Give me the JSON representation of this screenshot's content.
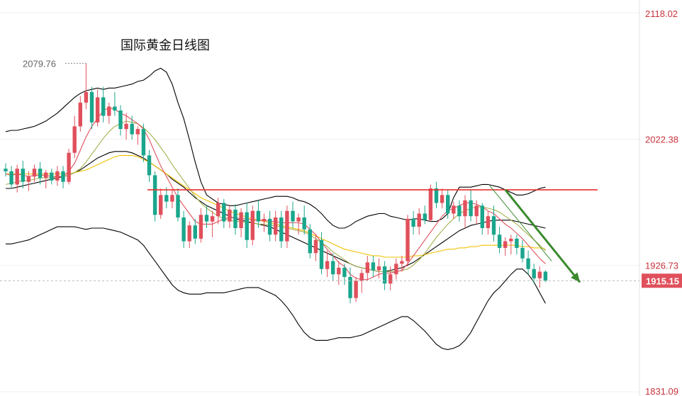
{
  "chart_data": {
    "type": "candlestick",
    "title": "国际黄金日线图",
    "ylim": [
      1831.09,
      2118.02
    ],
    "y_ticks": [
      {
        "value": 2118.02,
        "label": "2118.02"
      },
      {
        "value": 2022.38,
        "label": "2022.38"
      },
      {
        "value": 1926.73,
        "label": "1926.73"
      },
      {
        "value": 1831.09,
        "label": "1831.09"
      }
    ],
    "last_price": {
      "value": 1915.15,
      "label": "1915.15"
    },
    "high_marker": {
      "value": 2079.76,
      "label": "2079.76",
      "index": 14
    },
    "resistance_level": 1984.0,
    "colors": {
      "up": "#e0505c",
      "down": "#1aa68c",
      "ma_fast": "#e0505c",
      "ma_mid": "#a4b04c",
      "ma_slow": "#f2c200",
      "bollinger": "#000000",
      "resistance": "#e83030",
      "arrow": "#3a8a2e",
      "axis_text": "#c8323c",
      "badge": "#e0505c"
    },
    "candles": [
      [
        2000,
        2004,
        1994,
        1998
      ],
      [
        1998,
        2002,
        1985,
        1988
      ],
      [
        1988,
        2003,
        1982,
        2000
      ],
      [
        2000,
        2006,
        1985,
        1990
      ],
      [
        1990,
        1998,
        1983,
        1994
      ],
      [
        1994,
        2003,
        1990,
        2000
      ],
      [
        2000,
        2005,
        1988,
        1993
      ],
      [
        1993,
        1999,
        1985,
        1997
      ],
      [
        1997,
        2000,
        1988,
        1991
      ],
      [
        1991,
        2002,
        1987,
        1998
      ],
      [
        1998,
        2002,
        1985,
        1990
      ],
      [
        1990,
        2015,
        1988,
        2012
      ],
      [
        2012,
        2040,
        2008,
        2032
      ],
      [
        2032,
        2055,
        2028,
        2050
      ],
      [
        2050,
        2079.76,
        2045,
        2058
      ],
      [
        2058,
        2062,
        2030,
        2035
      ],
      [
        2035,
        2060,
        2032,
        2054
      ],
      [
        2054,
        2062,
        2035,
        2040
      ],
      [
        2040,
        2050,
        2034,
        2047
      ],
      [
        2047,
        2058,
        2040,
        2044
      ],
      [
        2044,
        2048,
        2025,
        2030
      ],
      [
        2030,
        2042,
        2022,
        2034
      ],
      [
        2034,
        2040,
        2022,
        2026
      ],
      [
        2026,
        2032,
        2018,
        2030
      ],
      [
        2030,
        2034,
        2005,
        2010
      ],
      [
        2010,
        2014,
        1990,
        1995
      ],
      [
        1995,
        1998,
        1960,
        1965
      ],
      [
        1965,
        1985,
        1962,
        1980
      ],
      [
        1980,
        1986,
        1970,
        1975
      ],
      [
        1975,
        1984,
        1970,
        1980
      ],
      [
        1980,
        1985,
        1960,
        1963
      ],
      [
        1963,
        1968,
        1940,
        1945
      ],
      [
        1945,
        1960,
        1940,
        1957
      ],
      [
        1957,
        1962,
        1943,
        1947
      ],
      [
        1947,
        1970,
        1944,
        1965
      ],
      [
        1965,
        1972,
        1955,
        1960
      ],
      [
        1960,
        1968,
        1948,
        1964
      ],
      [
        1964,
        1978,
        1958,
        1974
      ],
      [
        1974,
        1977,
        1955,
        1960
      ],
      [
        1960,
        1972,
        1955,
        1969
      ],
      [
        1969,
        1973,
        1950,
        1955
      ],
      [
        1955,
        1970,
        1948,
        1967
      ],
      [
        1967,
        1974,
        1940,
        1946
      ],
      [
        1946,
        1972,
        1942,
        1968
      ],
      [
        1968,
        1976,
        1955,
        1960
      ],
      [
        1960,
        1966,
        1952,
        1962
      ],
      [
        1962,
        1968,
        1945,
        1950
      ],
      [
        1950,
        1968,
        1945,
        1963
      ],
      [
        1963,
        1968,
        1940,
        1945
      ],
      [
        1945,
        1972,
        1940,
        1968
      ],
      [
        1968,
        1975,
        1955,
        1960
      ],
      [
        1960,
        1966,
        1950,
        1963
      ],
      [
        1963,
        1972,
        1950,
        1954
      ],
      [
        1954,
        1958,
        1932,
        1936
      ],
      [
        1936,
        1950,
        1930,
        1946
      ],
      [
        1946,
        1952,
        1920,
        1924
      ],
      [
        1924,
        1938,
        1918,
        1930
      ],
      [
        1930,
        1936,
        1915,
        1920
      ],
      [
        1920,
        1930,
        1912,
        1925
      ],
      [
        1925,
        1928,
        1912,
        1918
      ],
      [
        1918,
        1925,
        1898,
        1902
      ],
      [
        1902,
        1918,
        1899,
        1915
      ],
      [
        1915,
        1924,
        1906,
        1921
      ],
      [
        1921,
        1934,
        1915,
        1929
      ],
      [
        1929,
        1934,
        1918,
        1923
      ],
      [
        1923,
        1932,
        1917,
        1926
      ],
      [
        1926,
        1930,
        1908,
        1913
      ],
      [
        1913,
        1926,
        1908,
        1920
      ],
      [
        1920,
        1932,
        1916,
        1928
      ],
      [
        1928,
        1934,
        1922,
        1930
      ],
      [
        1930,
        1965,
        1926,
        1962
      ],
      [
        1962,
        1968,
        1950,
        1956
      ],
      [
        1956,
        1970,
        1950,
        1966
      ],
      [
        1966,
        1972,
        1958,
        1961
      ],
      [
        1961,
        1988,
        1960,
        1985
      ],
      [
        1985,
        1990,
        1970,
        1974
      ],
      [
        1974,
        1985,
        1970,
        1980
      ],
      [
        1980,
        1984,
        1962,
        1966
      ],
      [
        1966,
        1975,
        1962,
        1972
      ],
      [
        1972,
        1976,
        1960,
        1964
      ],
      [
        1964,
        1980,
        1955,
        1976
      ],
      [
        1976,
        1984,
        1960,
        1964
      ],
      [
        1964,
        1976,
        1958,
        1972
      ],
      [
        1972,
        1974,
        1950,
        1955
      ],
      [
        1955,
        1968,
        1950,
        1964
      ],
      [
        1964,
        1972,
        1945,
        1950
      ],
      [
        1950,
        1956,
        1936,
        1940
      ],
      [
        1940,
        1948,
        1934,
        1945
      ],
      [
        1945,
        1950,
        1935,
        1947
      ],
      [
        1947,
        1950,
        1935,
        1940
      ],
      [
        1940,
        1946,
        1929,
        1932
      ],
      [
        1932,
        1938,
        1920,
        1924
      ],
      [
        1924,
        1928,
        1913,
        1917
      ],
      [
        1917,
        1926,
        1910,
        1922
      ],
      [
        1922,
        1923,
        1914,
        1915.15
      ]
    ],
    "ma_fast": [
      1996,
      1995,
      1996,
      1995,
      1994,
      1995,
      1995,
      1995,
      1994,
      1994,
      1994,
      1998,
      2004,
      2014,
      2024,
      2032,
      2038,
      2044,
      2046,
      2045,
      2042,
      2040,
      2037,
      2034,
      2030,
      2022,
      2012,
      2002,
      1994,
      1986,
      1978,
      1972,
      1966,
      1960,
      1958,
      1958,
      1958,
      1960,
      1962,
      1963,
      1963,
      1962,
      1962,
      1961,
      1961,
      1961,
      1960,
      1960,
      1959,
      1959,
      1959,
      1959,
      1958,
      1954,
      1950,
      1944,
      1939,
      1934,
      1929,
      1926,
      1920,
      1917,
      1916,
      1916,
      1918,
      1920,
      1921,
      1921,
      1922,
      1923,
      1928,
      1934,
      1940,
      1946,
      1952,
      1958,
      1964,
      1968,
      1970,
      1972,
      1974,
      1974,
      1973,
      1971,
      1968,
      1966,
      1962,
      1958,
      1955,
      1951,
      1947,
      1942,
      1937,
      1932,
      1928
    ],
    "ma_mid": [
      1988,
      1989,
      1990,
      1991,
      1991,
      1992,
      1993,
      1993,
      1993,
      1994,
      1994,
      1995,
      1997,
      2000,
      2005,
      2011,
      2017,
      2023,
      2028,
      2032,
      2034,
      2036,
      2035,
      2034,
      2031,
      2027,
      2022,
      2016,
      2010,
      2003,
      1997,
      1991,
      1985,
      1979,
      1974,
      1970,
      1967,
      1964,
      1962,
      1961,
      1960,
      1960,
      1959,
      1959,
      1958,
      1958,
      1957,
      1957,
      1956,
      1955,
      1954,
      1953,
      1952,
      1950,
      1947,
      1944,
      1941,
      1937,
      1934,
      1931,
      1928,
      1926,
      1925,
      1924,
      1923,
      1922,
      1922,
      1922,
      1922,
      1923,
      1924,
      1927,
      1931,
      1936,
      1942,
      1948,
      1953,
      1958,
      1962,
      1966,
      1968,
      1970,
      1971,
      1971,
      1970,
      1969,
      1967,
      1964,
      1961,
      1958,
      1954,
      1950,
      1946,
      1942,
      1938
    ],
    "ma_slow": [
      1996,
      1996,
      1996,
      1996,
      1996,
      1996,
      1996,
      1996,
      1996,
      1996,
      1996,
      1996,
      1997,
      1998,
      1999,
      2001,
      2003,
      2005,
      2007,
      2009,
      2010,
      2010,
      2010,
      2009,
      2007,
      2005,
      2002,
      1999,
      1996,
      1993,
      1990,
      1987,
      1984,
      1981,
      1978,
      1976,
      1974,
      1972,
      1970,
      1968,
      1966,
      1965,
      1963,
      1962,
      1961,
      1960,
      1959,
      1958,
      1957,
      1956,
      1955,
      1954,
      1953,
      1951,
      1949,
      1947,
      1945,
      1943,
      1941,
      1939,
      1938,
      1937,
      1936,
      1935,
      1934,
      1934,
      1933,
      1933,
      1933,
      1933,
      1933,
      1934,
      1934,
      1935,
      1936,
      1937,
      1938,
      1939,
      1939,
      1940,
      1940,
      1941,
      1941,
      1942,
      1942,
      1942,
      1942,
      1942,
      1942,
      1942,
      1941,
      1941,
      1940,
      1940,
      1939
    ],
    "bollinger_mid": [
      1985,
      1985,
      1986,
      1987,
      1988,
      1989,
      1990,
      1991,
      1992,
      1993,
      1994,
      1995,
      1997,
      1999,
      2002,
      2005,
      2008,
      2010,
      2012,
      2013,
      2013,
      2013,
      2012,
      2010,
      2008,
      2005,
      2002,
      1999,
      1996,
      1992,
      1989,
      1986,
      1982,
      1978,
      1975,
      1972,
      1970,
      1968,
      1966,
      1964,
      1962,
      1961,
      1960,
      1959,
      1958,
      1957,
      1956,
      1954,
      1952,
      1950,
      1948,
      1946,
      1944,
      1942,
      1940,
      1938,
      1936,
      1934,
      1932,
      1930,
      1928,
      1926,
      1925,
      1924,
      1923,
      1922,
      1922,
      1923,
      1924,
      1925,
      1927,
      1929,
      1932,
      1935,
      1938,
      1941,
      1944,
      1947,
      1950,
      1953,
      1955,
      1957,
      1958,
      1959,
      1960,
      1961,
      1961,
      1961,
      1961,
      1960,
      1959,
      1958,
      1957,
      1956,
      1955
    ],
    "bollinger_upper": [
      2028,
      2029,
      2029,
      2030,
      2031,
      2032,
      2034,
      2036,
      2039,
      2042,
      2046,
      2050,
      2054,
      2057,
      2059,
      2060,
      2061,
      2060,
      2061,
      2061,
      2062,
      2063,
      2064,
      2066,
      2067,
      2070,
      2074,
      2076,
      2073,
      2064,
      2050,
      2038,
      2022,
      2005,
      1990,
      1980,
      1977,
      1974,
      1973,
      1972,
      1972,
      1973,
      1974,
      1975,
      1976,
      1977,
      1978,
      1979,
      1979,
      1979,
      1978,
      1976,
      1975,
      1973,
      1970,
      1966,
      1961,
      1957,
      1955,
      1955,
      1957,
      1960,
      1962,
      1964,
      1965,
      1966,
      1966,
      1964,
      1963,
      1962,
      1961,
      1962,
      1962,
      1961,
      1960,
      1960,
      1962,
      1966,
      1978,
      1986,
      1986,
      1986,
      1987,
      1988,
      1988,
      1987,
      1986,
      1984,
      1982,
      1980,
      1980,
      1981,
      1983,
      1985,
      1986
    ],
    "bollinger_lower": [
      1943,
      1943,
      1944,
      1945,
      1946,
      1948,
      1950,
      1952,
      1954,
      1956,
      1956,
      1956,
      1956,
      1955,
      1954,
      1955,
      1955,
      1955,
      1954,
      1953,
      1952,
      1950,
      1948,
      1946,
      1942,
      1936,
      1930,
      1924,
      1918,
      1912,
      1908,
      1906,
      1905,
      1905,
      1905,
      1906,
      1906,
      1906,
      1906,
      1907,
      1908,
      1909,
      1910,
      1910,
      1910,
      1908,
      1906,
      1904,
      1900,
      1895,
      1889,
      1882,
      1876,
      1872,
      1870,
      1870,
      1870,
      1871,
      1872,
      1872,
      1872,
      1873,
      1874,
      1876,
      1878,
      1880,
      1882,
      1884,
      1886,
      1888,
      1888,
      1885,
      1881,
      1877,
      1872,
      1867,
      1864,
      1863,
      1864,
      1866,
      1870,
      1876,
      1884,
      1892,
      1900,
      1906,
      1910,
      1915,
      1920,
      1924,
      1924,
      1920,
      1914,
      1906,
      1898
    ],
    "trend_arrow": {
      "from": [
        1984,
        87
      ],
      "to": [
        1914,
        100
      ]
    }
  }
}
